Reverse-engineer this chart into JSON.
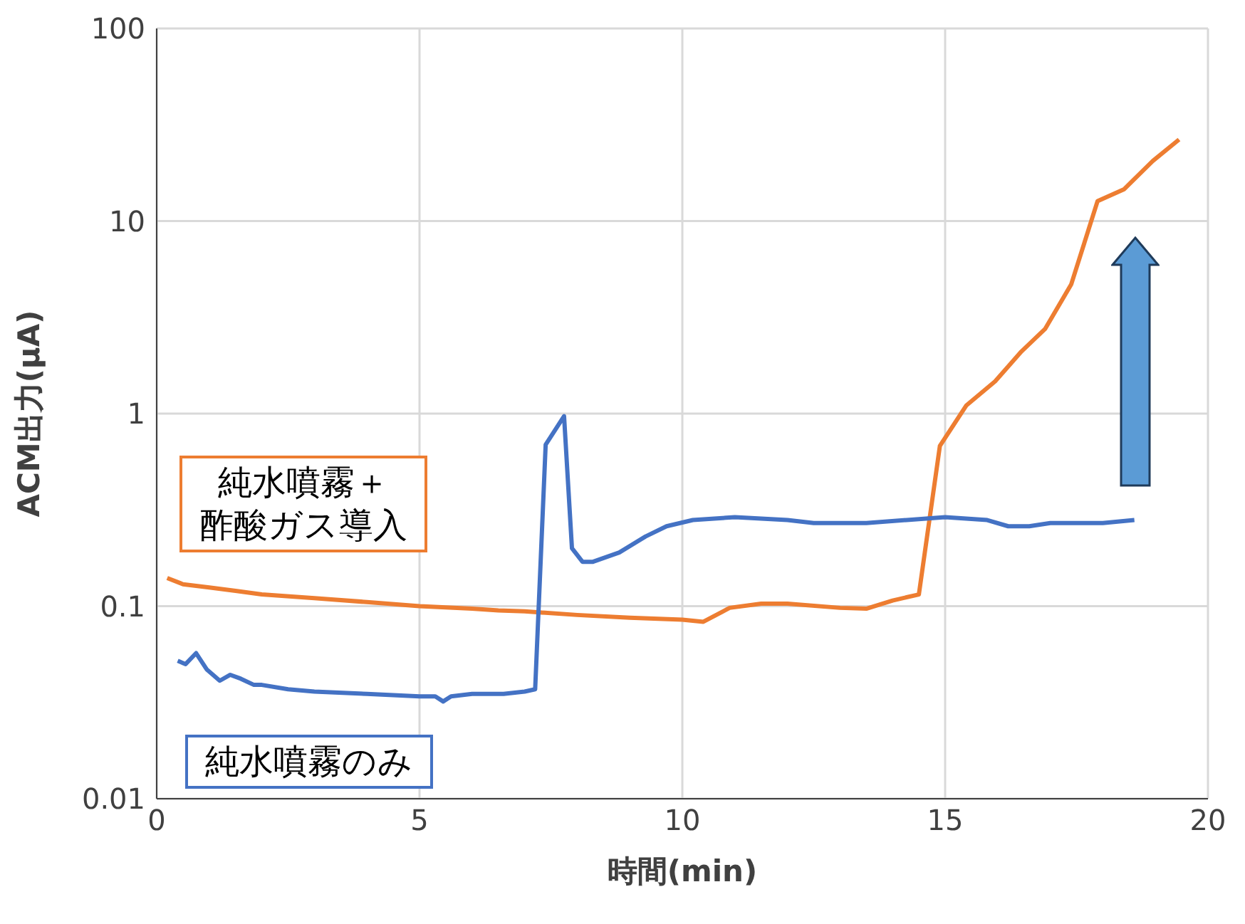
{
  "chart_data": {
    "type": "line",
    "xlabel": "時間(min)",
    "ylabel": "ACM出力(μA)",
    "log": "y",
    "xlim": [
      0,
      20
    ],
    "xticks": [
      0,
      5,
      10,
      15,
      20
    ],
    "ylim": [
      0.01,
      100
    ],
    "yticks": [
      0.01,
      0.1,
      1,
      10,
      100
    ],
    "grid": true,
    "marker": "none",
    "line_style": "solid",
    "series": [
      {
        "name": "純水噴霧＋酢酸ガス導入",
        "color": "#ed7d31",
        "x": [
          0.2,
          0.5,
          1,
          1.5,
          2,
          3,
          4,
          5,
          6,
          6.5,
          7,
          8,
          9,
          10,
          10.4,
          10.9,
          11.5,
          12,
          13,
          13.5,
          14,
          14.5,
          14.9,
          15.4,
          15.95,
          16.45,
          16.9,
          17.4,
          17.9,
          18.4,
          18.95,
          19.45
        ],
        "values": [
          0.14,
          0.13,
          0.125,
          0.12,
          0.115,
          0.11,
          0.105,
          0.1,
          0.097,
          0.095,
          0.094,
          0.09,
          0.087,
          0.085,
          0.083,
          0.098,
          0.103,
          0.103,
          0.098,
          0.097,
          0.107,
          0.115,
          0.68,
          1.1,
          1.47,
          2.1,
          2.75,
          4.7,
          12.7,
          14.6,
          20.5,
          26.5
        ]
      },
      {
        "name": "純水噴霧のみ",
        "color": "#4472c4",
        "x": [
          0.4,
          0.55,
          0.75,
          0.95,
          1.2,
          1.4,
          1.6,
          1.85,
          2.0,
          2.5,
          3,
          4,
          5,
          5.3,
          5.45,
          5.6,
          6,
          6.6,
          7.0,
          7.2,
          7.4,
          7.75,
          7.9,
          8.1,
          8.3,
          8.8,
          9.3,
          9.7,
          10.2,
          11,
          12,
          12.5,
          13.5,
          15,
          15.8,
          16.2,
          16.6,
          17,
          18,
          18.6
        ],
        "values": [
          0.052,
          0.05,
          0.057,
          0.047,
          0.041,
          0.044,
          0.042,
          0.039,
          0.039,
          0.037,
          0.036,
          0.035,
          0.034,
          0.034,
          0.032,
          0.034,
          0.035,
          0.035,
          0.036,
          0.037,
          0.69,
          0.97,
          0.2,
          0.17,
          0.17,
          0.19,
          0.23,
          0.26,
          0.28,
          0.29,
          0.28,
          0.27,
          0.27,
          0.29,
          0.28,
          0.26,
          0.26,
          0.27,
          0.27,
          0.28
        ]
      }
    ]
  }
}
